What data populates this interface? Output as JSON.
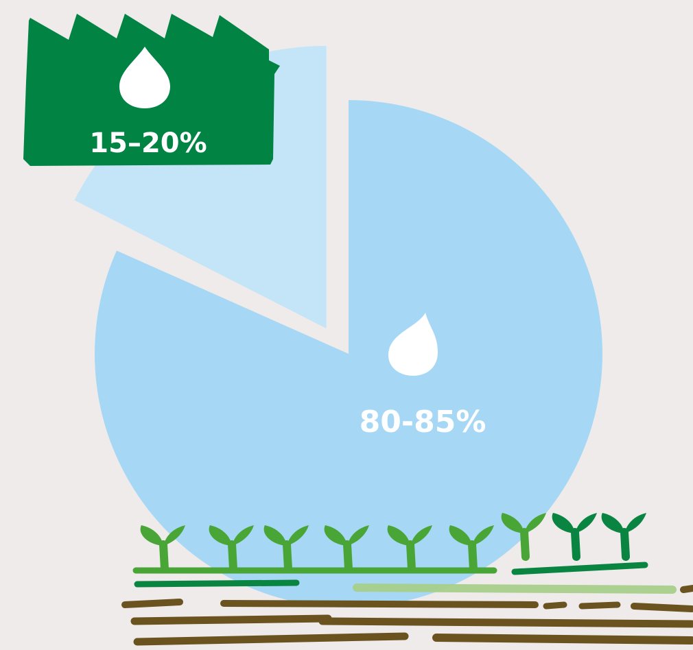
{
  "chart_data": {
    "type": "pie",
    "slices": [
      {
        "label": "80-85%",
        "value": 82.5,
        "color": "#a6d8f5"
      },
      {
        "label": "15–20%",
        "value": 17.5,
        "color": "#c4e4f7"
      }
    ],
    "legend": "none",
    "grid": false
  },
  "colors": {
    "background": "#efebea",
    "callout_green": "#008343",
    "sprout_light": "#4aa537",
    "sprout_dark": "#0a8541",
    "soil": "#6b531f",
    "line_light": "#a7cf8a",
    "drop": "#ffffff"
  },
  "icons": [
    "water-drop-icon",
    "factory-icon",
    "sprouts-icon",
    "soil-lines"
  ]
}
